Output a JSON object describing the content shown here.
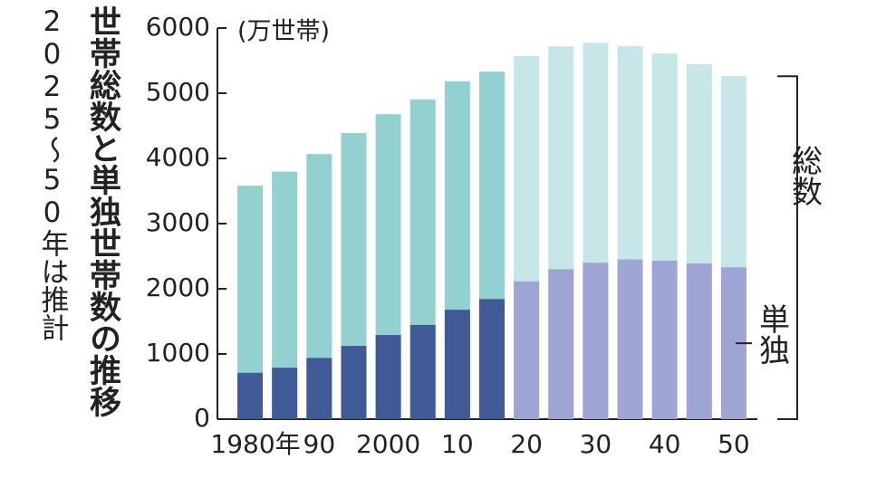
{
  "chart_data": {
    "type": "bar",
    "title": "世帯総数と単独世帯数の推移",
    "subtitle": "2025〜50年は推計",
    "unit": "(万世帯)",
    "categories": [
      "1980年",
      null,
      "90",
      null,
      "2000",
      null,
      "10",
      null,
      "20",
      null,
      "30",
      null,
      "40",
      null,
      "50"
    ],
    "series": [
      {
        "name": "総数",
        "colors": [
          "#93d0d0",
          "#93d0d0",
          "#93d0d0",
          "#93d0d0",
          "#93d0d0",
          "#93d0d0",
          "#93d0d0",
          "#93d0d0",
          "#c6e6e8",
          "#c6e6e8",
          "#c6e6e8",
          "#c6e6e8",
          "#c6e6e8",
          "#c6e6e8",
          "#c6e6e8"
        ],
        "values": [
          3582,
          3798,
          4067,
          4390,
          4678,
          4906,
          5184,
          5333,
          5570,
          5720,
          5773,
          5722,
          5611,
          5444,
          5261
        ]
      },
      {
        "name": "単独",
        "colors": [
          "#405a97",
          "#405a97",
          "#405a97",
          "#405a97",
          "#405a97",
          "#405a97",
          "#405a97",
          "#405a97",
          "#9ea4d3",
          "#9ea4d3",
          "#9ea4d3",
          "#9ea4d3",
          "#9ea4d3",
          "#9ea4d3",
          "#9ea4d3"
        ],
        "values": [
          711,
          789,
          939,
          1124,
          1291,
          1446,
          1678,
          1842,
          2115,
          2300,
          2400,
          2450,
          2430,
          2390,
          2330
        ]
      }
    ],
    "ylim": [
      0,
      6000
    ],
    "yticks": [
      0,
      1000,
      2000,
      3000,
      4000,
      5000,
      6000
    ]
  }
}
